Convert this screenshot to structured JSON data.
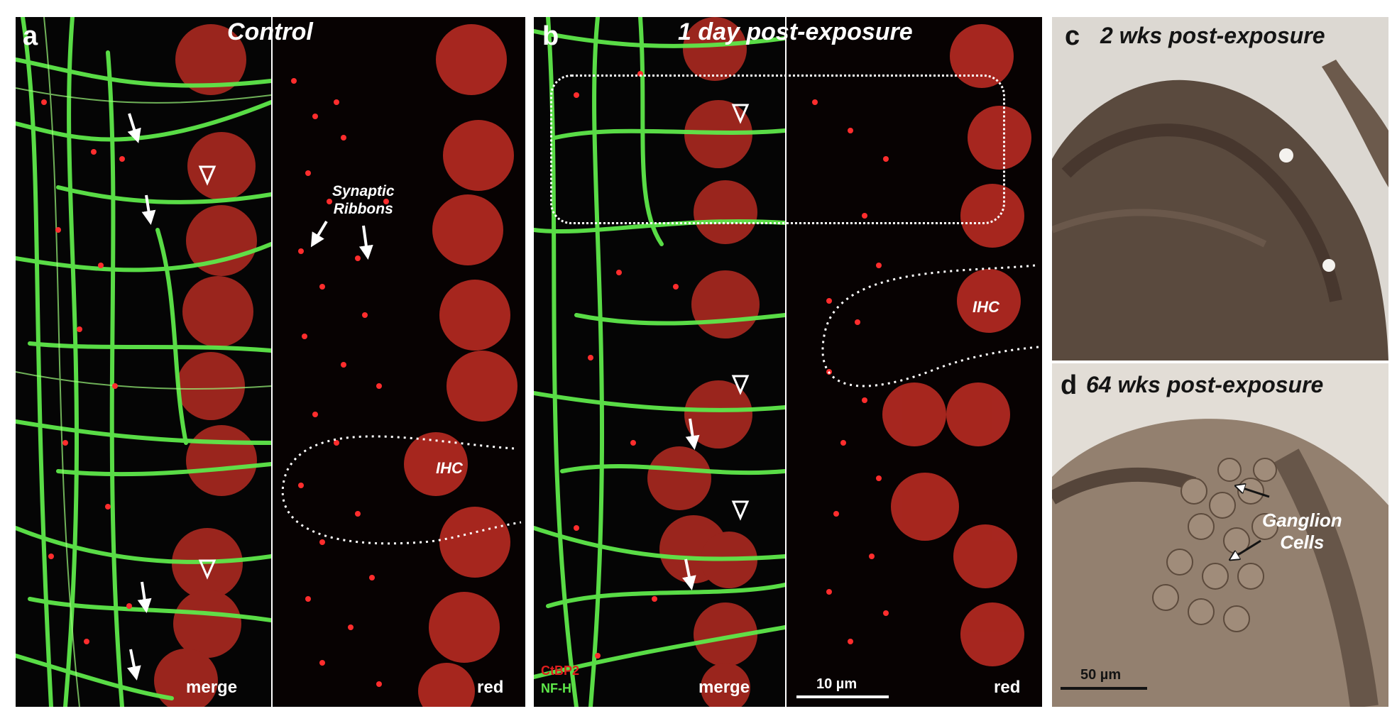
{
  "panels": {
    "a": {
      "letter": "a",
      "title": "Control",
      "merge_label": "merge",
      "red_label": "red",
      "annotation_line1": "Synaptic",
      "annotation_line2": "Ribbons",
      "ihc_label": "IHC"
    },
    "b": {
      "letter": "b",
      "title": "1 day post-exposure",
      "merge_label": "merge",
      "red_label": "red",
      "ihc_label": "IHC",
      "legend_ctbp2": "CtBP2",
      "legend_nfh": "NF-H",
      "scale_label": "10 µm"
    },
    "c": {
      "letter": "c",
      "title": "2 wks post-exposure"
    },
    "d": {
      "letter": "d",
      "title": "64 wks post-exposure",
      "annotation_line1": "Ganglion",
      "annotation_line2": "Cells",
      "scale_label": "50 µm"
    }
  },
  "colors": {
    "ctbp2_red": "#e01e1e",
    "nfh_green": "#5ee84a",
    "background_black": "#000000",
    "histology_brown": "#5a4a3e"
  }
}
